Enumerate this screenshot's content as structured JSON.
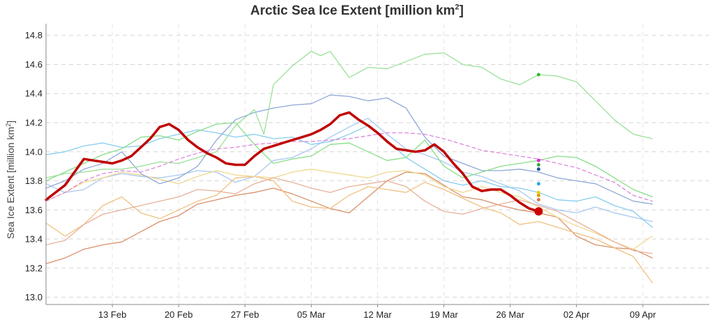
{
  "chart_data": {
    "type": "line",
    "title": "Arctic Sea Ice Extent [million km",
    "title_sup": "2",
    "title_end": "]",
    "ylabel": "Sea Ice Extent [million km",
    "ylabel_sup": "2",
    "ylabel_end": "]",
    "xlabel": "",
    "ylim": [
      12.95,
      14.88
    ],
    "xlim": [
      -7,
      63
    ],
    "yticks": [
      "14.8",
      "14.6",
      "14.4",
      "14.2",
      "14.0",
      "13.8",
      "13.6",
      "13.4",
      "13.2",
      "13.0"
    ],
    "ytick_values": [
      14.8,
      14.6,
      14.4,
      14.2,
      14.0,
      13.8,
      13.6,
      13.4,
      13.2,
      13.0
    ],
    "xticks": [
      {
        "label": "13 Feb",
        "day": 0
      },
      {
        "label": "20 Feb",
        "day": 7
      },
      {
        "label": "27 Feb",
        "day": 14
      },
      {
        "label": "05 Mar",
        "day": 21
      },
      {
        "label": "12 Mar",
        "day": 28
      },
      {
        "label": "19 Mar",
        "day": 35
      },
      {
        "label": "26 Mar",
        "day": 42
      },
      {
        "label": "02 Apr",
        "day": 49
      },
      {
        "label": "09 Apr",
        "day": 56
      }
    ],
    "grid": true,
    "series": [
      {
        "color": "#a8c8f0",
        "width": 1.3,
        "x": [
          -7,
          -5,
          -3,
          -1,
          1,
          3,
          5,
          7,
          9,
          11,
          13,
          15,
          17,
          19,
          21,
          23,
          25,
          27,
          29,
          31,
          33,
          35,
          37,
          39,
          41,
          43,
          45,
          47,
          49,
          51,
          53,
          55,
          57
        ],
        "y": [
          13.78,
          13.72,
          13.74,
          13.82,
          13.85,
          13.83,
          13.82,
          13.84,
          13.87,
          13.86,
          13.79,
          13.83,
          13.94,
          13.96,
          14.02,
          14.1,
          14.17,
          14.23,
          14.12,
          14.02,
          13.98,
          13.93,
          13.86,
          13.83,
          13.78,
          13.73,
          13.64,
          13.6,
          13.58,
          13.62,
          13.58,
          13.55,
          13.52
        ]
      },
      {
        "color": "#d9906a",
        "width": 1.3,
        "x": [
          -7,
          -5,
          -3,
          -1,
          1,
          3,
          5,
          7,
          9,
          11,
          13,
          15,
          17,
          19,
          21,
          23,
          25,
          27,
          29,
          31,
          33,
          35,
          37,
          39,
          41,
          43,
          45,
          47,
          49,
          51,
          53,
          55,
          57
        ],
        "y": [
          13.23,
          13.27,
          13.33,
          13.36,
          13.38,
          13.45,
          13.52,
          13.56,
          13.64,
          13.67,
          13.7,
          13.72,
          13.75,
          13.71,
          13.66,
          13.61,
          13.58,
          13.69,
          13.8,
          13.86,
          13.85,
          13.77,
          13.69,
          13.67,
          13.63,
          13.6,
          13.58,
          13.55,
          13.42,
          13.36,
          13.34,
          13.33,
          13.27
        ]
      },
      {
        "color": "#f0c080",
        "width": 1.3,
        "x": [
          -7,
          -5,
          -3,
          -1,
          1,
          3,
          5,
          7,
          9,
          11,
          13,
          15,
          17,
          19,
          21,
          23,
          25,
          27,
          29,
          31,
          33,
          35,
          37,
          39,
          41,
          43,
          45,
          47,
          49,
          51,
          53,
          55,
          57
        ],
        "y": [
          13.51,
          13.42,
          13.5,
          13.63,
          13.69,
          13.58,
          13.54,
          13.6,
          13.66,
          13.7,
          13.82,
          13.83,
          13.8,
          13.66,
          13.62,
          13.61,
          13.7,
          13.76,
          13.74,
          13.72,
          13.79,
          13.74,
          13.68,
          13.62,
          13.58,
          13.5,
          13.52,
          13.48,
          13.44,
          13.4,
          13.34,
          13.28,
          13.1
        ]
      },
      {
        "color": "#f0d890",
        "width": 1.3,
        "x": [
          -7,
          -5,
          -3,
          -1,
          1,
          3,
          5,
          7,
          9,
          11,
          13,
          15,
          17,
          19,
          21,
          23,
          25,
          27,
          29,
          31,
          33,
          35,
          37,
          39,
          41,
          43,
          45,
          47,
          49,
          51,
          53,
          55,
          57
        ],
        "y": [
          13.66,
          13.72,
          13.79,
          13.82,
          13.86,
          13.84,
          13.81,
          13.78,
          13.83,
          13.87,
          13.84,
          13.83,
          13.82,
          13.86,
          13.88,
          13.86,
          13.84,
          13.82,
          13.86,
          13.87,
          13.84,
          13.76,
          13.72,
          13.76,
          13.72,
          13.69,
          13.62,
          13.55,
          13.49,
          13.44,
          13.38,
          13.33,
          13.42
        ]
      },
      {
        "color": "#e8b098",
        "width": 1.3,
        "x": [
          -7,
          -5,
          -3,
          -1,
          1,
          3,
          5,
          7,
          9,
          11,
          13,
          15,
          17,
          19,
          21,
          23,
          25,
          27,
          29,
          31,
          33,
          35,
          37,
          39,
          41,
          43,
          45,
          47,
          49,
          51,
          53,
          55,
          57
        ],
        "y": [
          13.36,
          13.39,
          13.5,
          13.57,
          13.6,
          13.63,
          13.66,
          13.69,
          13.74,
          13.73,
          13.71,
          13.78,
          13.82,
          13.79,
          13.75,
          13.72,
          13.76,
          13.78,
          13.8,
          13.76,
          13.66,
          13.59,
          13.57,
          13.61,
          13.64,
          13.67,
          13.63,
          13.59,
          13.52,
          13.45,
          13.38,
          13.32,
          13.3
        ]
      },
      {
        "color": "#88ccee",
        "width": 1.3,
        "x": [
          -7,
          -5,
          -3,
          -1,
          1,
          3,
          5,
          7,
          9,
          11,
          13,
          15,
          17,
          19,
          21,
          23,
          25,
          27,
          29,
          31,
          33,
          35,
          37,
          39,
          41,
          43,
          45,
          47,
          49,
          51,
          53,
          55,
          57
        ],
        "y": [
          13.98,
          14.0,
          14.04,
          14.06,
          14.03,
          14.04,
          14.09,
          14.12,
          14.15,
          14.13,
          14.1,
          14.12,
          14.09,
          14.1,
          14.05,
          14.07,
          14.12,
          14.18,
          14.08,
          13.96,
          13.88,
          13.8,
          13.77,
          13.8,
          13.76,
          13.75,
          13.72,
          13.67,
          13.66,
          13.69,
          13.63,
          13.59,
          13.48
        ]
      },
      {
        "color": "#90a8d8",
        "width": 1.3,
        "x": [
          -7,
          -5,
          -3,
          -1,
          1,
          3,
          5,
          7,
          9,
          11,
          13,
          15,
          17,
          19,
          21,
          23,
          25,
          27,
          29,
          31,
          33,
          35,
          37,
          39,
          41,
          43,
          45,
          47,
          49,
          51,
          53,
          55,
          57
        ],
        "y": [
          13.75,
          13.8,
          13.88,
          13.92,
          14.0,
          13.85,
          13.78,
          13.82,
          13.9,
          14.08,
          14.22,
          14.27,
          14.3,
          14.32,
          14.33,
          14.39,
          14.38,
          14.35,
          14.37,
          14.3,
          14.1,
          13.97,
          13.92,
          13.87,
          13.87,
          13.88,
          13.86,
          13.82,
          13.8,
          13.78,
          13.72,
          13.66,
          13.64
        ]
      },
      {
        "color": "#88dd88",
        "width": 1.3,
        "x": [
          -7,
          -5,
          -3,
          -1,
          1,
          3,
          5,
          7,
          9,
          11,
          13,
          15,
          17,
          19,
          21,
          23,
          25,
          27,
          29,
          31,
          33,
          35,
          37,
          39,
          41,
          43,
          45,
          47,
          49,
          51,
          53,
          55,
          57
        ],
        "y": [
          13.8,
          13.86,
          13.92,
          13.98,
          14.02,
          14.1,
          14.11,
          14.08,
          14.14,
          14.19,
          14.2,
          14.05,
          13.92,
          13.95,
          13.97,
          14.05,
          14.06,
          14.0,
          13.94,
          13.96,
          14.08,
          13.9,
          13.82,
          13.86,
          13.9,
          13.92,
          13.94,
          13.97,
          13.96,
          13.9,
          13.82,
          13.74,
          13.69
        ]
      },
      {
        "color": "#99e099",
        "width": 1.3,
        "x": [
          -7,
          -5,
          -3,
          -1,
          1,
          3,
          5,
          7,
          9,
          11,
          13,
          15,
          16,
          17,
          19,
          21,
          22,
          23,
          25,
          27,
          29,
          31,
          33,
          35,
          37,
          39,
          41,
          43,
          45,
          47,
          49,
          51,
          53,
          55,
          57
        ],
        "y": [
          13.82,
          13.85,
          13.86,
          13.88,
          13.88,
          13.9,
          13.93,
          13.92,
          13.96,
          14.0,
          14.18,
          14.29,
          14.12,
          14.46,
          14.59,
          14.69,
          14.66,
          14.69,
          14.51,
          14.58,
          14.57,
          14.62,
          14.67,
          14.68,
          14.6,
          14.58,
          14.5,
          14.46,
          14.53,
          14.52,
          14.48,
          14.35,
          14.22,
          14.12,
          14.09
        ]
      },
      {
        "color": "#dd88dd",
        "width": 1.3,
        "dash": "5,4",
        "x": [
          -7,
          -5,
          -3,
          -1,
          1,
          3,
          5,
          7,
          9,
          11,
          13,
          15,
          17,
          19,
          21,
          23,
          25,
          27,
          29,
          31,
          33,
          35,
          37,
          39,
          41,
          43,
          45,
          47,
          49,
          51,
          53,
          55,
          57
        ],
        "y": [
          13.66,
          13.72,
          13.8,
          13.85,
          13.87,
          13.86,
          13.9,
          13.95,
          13.99,
          14.02,
          14.03,
          14.05,
          14.06,
          14.07,
          14.07,
          14.08,
          14.09,
          14.11,
          14.13,
          14.13,
          14.12,
          14.09,
          14.05,
          14.01,
          13.99,
          13.97,
          13.95,
          13.92,
          13.89,
          13.84,
          13.79,
          13.7,
          13.66
        ]
      },
      {
        "color": "#c00000",
        "width": 3.5,
        "x": [
          -7,
          -6,
          -5,
          -4,
          -3,
          -2,
          -1,
          0,
          1,
          2,
          3,
          4,
          5,
          6,
          7,
          8,
          9,
          10,
          11,
          12,
          13,
          14,
          15,
          16,
          17,
          18,
          19,
          20,
          21,
          22,
          23,
          24,
          25,
          26,
          27,
          28,
          29,
          30,
          31,
          32,
          33,
          34,
          35,
          36,
          37,
          38,
          39,
          40,
          41,
          42,
          43,
          44,
          45
        ],
        "y": [
          13.67,
          13.72,
          13.77,
          13.86,
          13.95,
          13.94,
          13.93,
          13.92,
          13.94,
          13.97,
          14.03,
          14.09,
          14.17,
          14.19,
          14.15,
          14.08,
          14.03,
          13.99,
          13.96,
          13.92,
          13.91,
          13.91,
          13.97,
          14.02,
          14.04,
          14.06,
          14.08,
          14.1,
          14.12,
          14.15,
          14.19,
          14.25,
          14.27,
          14.22,
          14.18,
          14.13,
          14.07,
          14.02,
          14.01,
          14.0,
          14.01,
          14.05,
          14.0,
          13.92,
          13.85,
          13.76,
          13.73,
          13.74,
          13.74,
          13.7,
          13.65,
          13.61,
          13.59
        ]
      }
    ],
    "end_points": [
      {
        "x": 45,
        "y": 14.53,
        "color": "#33bb33"
      },
      {
        "x": 45,
        "y": 13.94,
        "color": "#cc33cc"
      },
      {
        "x": 45,
        "y": 13.91,
        "color": "#33aa33"
      },
      {
        "x": 45,
        "y": 13.88,
        "color": "#2255aa"
      },
      {
        "x": 45,
        "y": 13.78,
        "color": "#22aadd"
      },
      {
        "x": 45,
        "y": 13.72,
        "color": "#f0d000"
      },
      {
        "x": 45,
        "y": 13.7,
        "color": "#d4a000"
      },
      {
        "x": 45,
        "y": 13.67,
        "color": "#dd7744"
      },
      {
        "x": 45,
        "y": 13.59,
        "color": "#cc0000",
        "r": 6
      }
    ]
  }
}
